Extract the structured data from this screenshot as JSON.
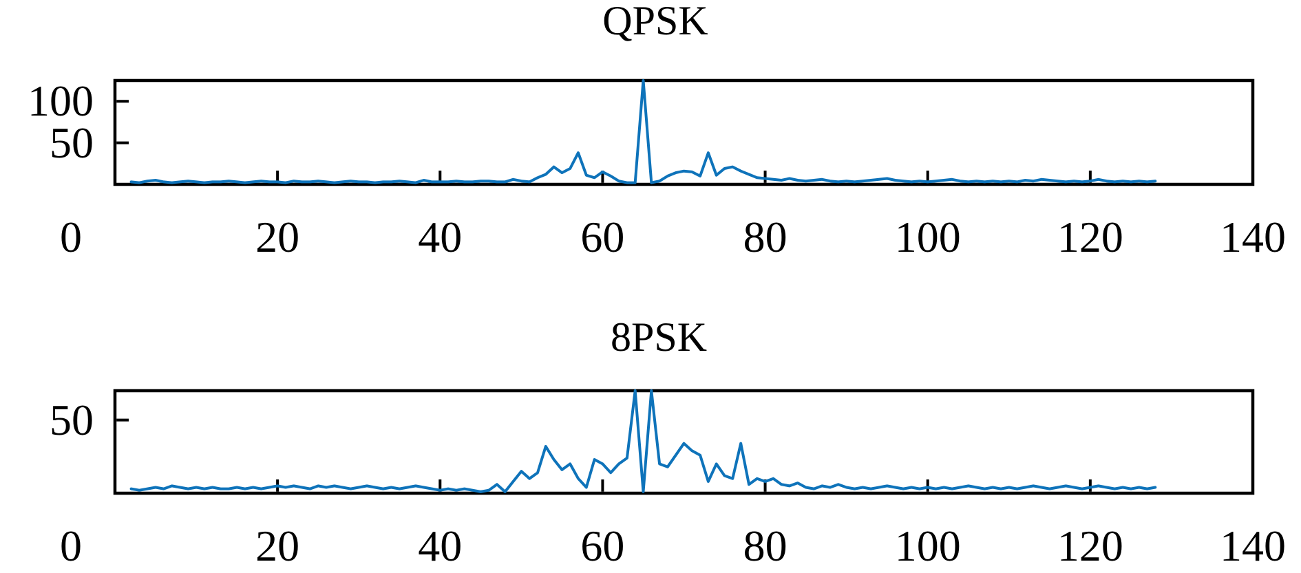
{
  "figure": {
    "background": "#ffffff",
    "text_color": "#000000"
  },
  "chart_data": [
    {
      "type": "line",
      "title": "QPSK",
      "line_color": "#0e73ba",
      "xlim": [
        0,
        140
      ],
      "ylim": [
        0,
        125
      ],
      "x_ticks": [
        0,
        20,
        40,
        60,
        80,
        100,
        120,
        140
      ],
      "x_tick_labels": [
        "0",
        "20",
        "40",
        "60",
        "80",
        "100",
        "120",
        "140"
      ],
      "y_ticks": [
        50,
        100
      ],
      "y_tick_labels": [
        "50",
        "100"
      ],
      "grid": false,
      "legend": null,
      "x_first": 2,
      "x_step": 1,
      "values": [
        3,
        2,
        4,
        5,
        3,
        2,
        3,
        4,
        3,
        2,
        3,
        3,
        4,
        3,
        2,
        3,
        4,
        3,
        3,
        2,
        4,
        3,
        3,
        4,
        3,
        2,
        3,
        4,
        3,
        3,
        2,
        3,
        3,
        4,
        3,
        2,
        5,
        3,
        3,
        3,
        4,
        3,
        3,
        4,
        4,
        3,
        3,
        6,
        4,
        3,
        8,
        12,
        21,
        14,
        19,
        38,
        11,
        8,
        15,
        10,
        4,
        2,
        2,
        125,
        2,
        4,
        10,
        14,
        16,
        15,
        10,
        38,
        11,
        19,
        21,
        16,
        12,
        8,
        7,
        6,
        5,
        7,
        5,
        4,
        5,
        6,
        4,
        3,
        4,
        3,
        4,
        5,
        6,
        7,
        5,
        4,
        3,
        4,
        3,
        4,
        5,
        6,
        4,
        3,
        4,
        3,
        4,
        3,
        4,
        3,
        5,
        4,
        6,
        5,
        4,
        3,
        4,
        3,
        4,
        6,
        4,
        3,
        4,
        3,
        4,
        3,
        4
      ]
    },
    {
      "type": "line",
      "title": "8PSK",
      "line_color": "#0e73ba",
      "xlim": [
        0,
        140
      ],
      "ylim": [
        0,
        70
      ],
      "x_ticks": [
        0,
        20,
        40,
        60,
        80,
        100,
        120,
        140
      ],
      "x_tick_labels": [
        "0",
        "20",
        "40",
        "60",
        "80",
        "100",
        "120",
        "140"
      ],
      "y_ticks": [
        50
      ],
      "y_tick_labels": [
        "50"
      ],
      "grid": false,
      "legend": null,
      "x_first": 2,
      "x_step": 1,
      "values": [
        3,
        2,
        3,
        4,
        3,
        5,
        4,
        3,
        4,
        3,
        4,
        3,
        3,
        4,
        3,
        4,
        3,
        4,
        5,
        4,
        5,
        4,
        3,
        5,
        4,
        5,
        4,
        3,
        4,
        5,
        4,
        3,
        4,
        3,
        4,
        5,
        4,
        3,
        2,
        3,
        2,
        3,
        2,
        1,
        2,
        6,
        1,
        8,
        15,
        10,
        14,
        32,
        23,
        16,
        20,
        10,
        4,
        23,
        20,
        14,
        20,
        24,
        70,
        1,
        70,
        20,
        18,
        26,
        34,
        29,
        26,
        8,
        20,
        12,
        10,
        34,
        6,
        10,
        8,
        10,
        6,
        5,
        7,
        4,
        3,
        5,
        4,
        6,
        4,
        3,
        4,
        3,
        4,
        5,
        4,
        3,
        4,
        3,
        4,
        3,
        4,
        3,
        4,
        5,
        4,
        3,
        4,
        3,
        4,
        3,
        4,
        5,
        4,
        3,
        4,
        5,
        4,
        3,
        4,
        5,
        4,
        3,
        4,
        3,
        4,
        3,
        4
      ]
    }
  ]
}
